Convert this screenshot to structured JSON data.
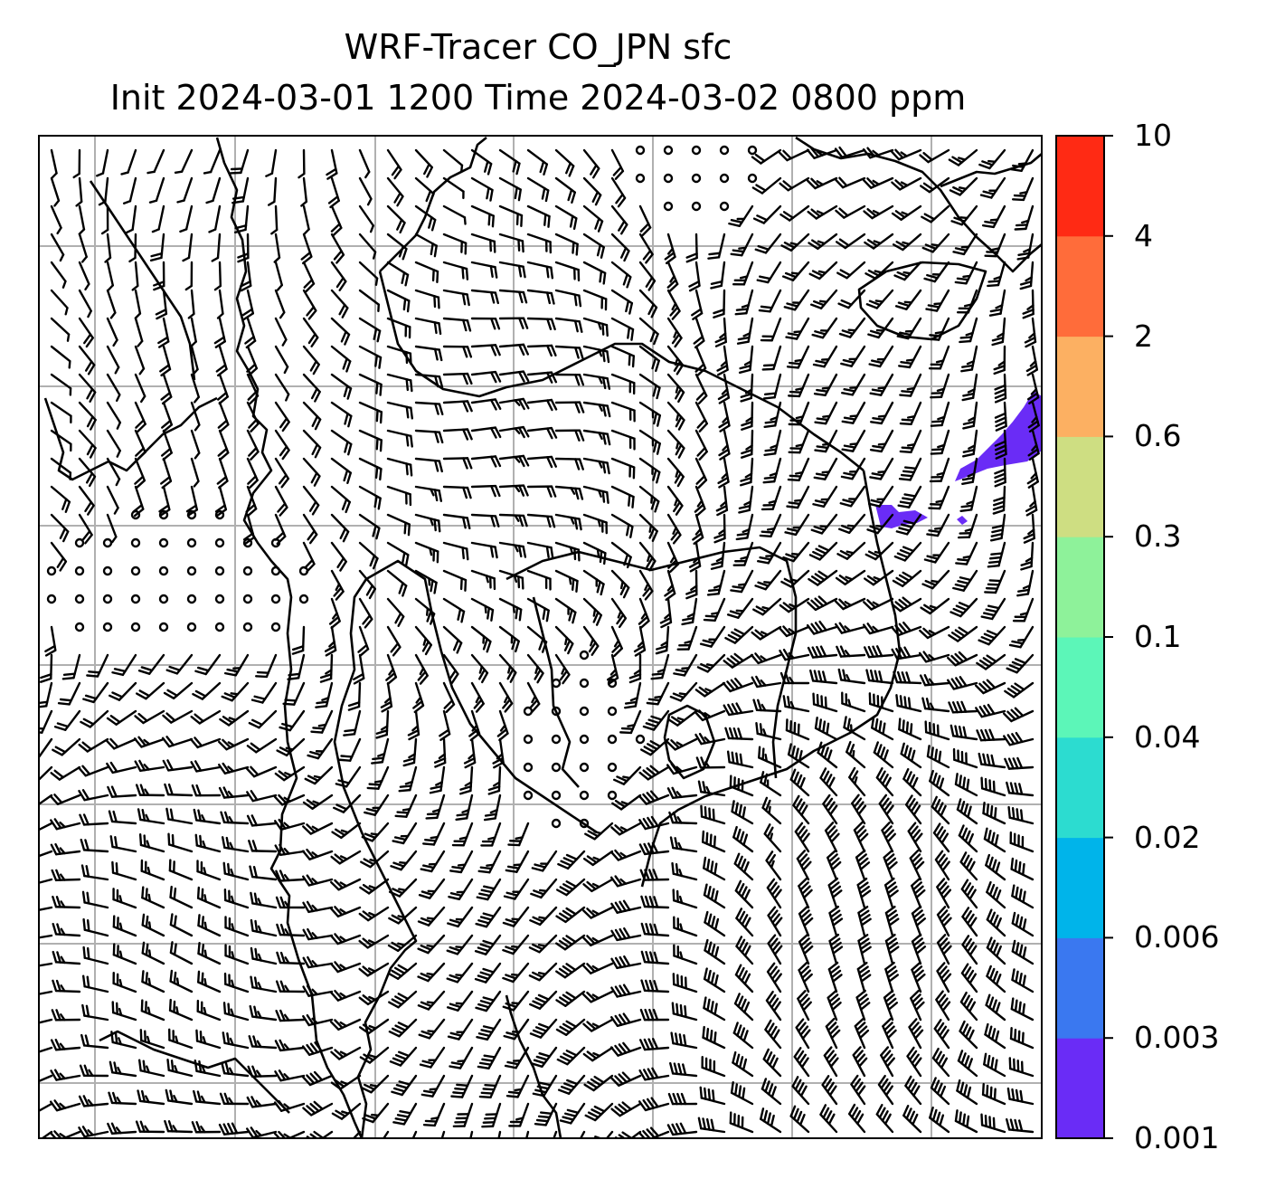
{
  "title": {
    "line1": "WRF-Tracer CO_JPN sfc",
    "line2": "Init 2024-03-01 1200 Time 2024-03-02 0800 ppm"
  },
  "colorbar": {
    "levels": [
      "0.001",
      "0.003",
      "0.006",
      "0.02",
      "0.04",
      "0.1",
      "0.3",
      "0.6",
      "2",
      "4",
      "10"
    ],
    "colors": [
      "#6a2cf6",
      "#3a78f0",
      "#00b4ea",
      "#2cdcd0",
      "#5cf6b8",
      "#8ef29a",
      "#cede82",
      "#fcb062",
      "#ff6c3a",
      "#ff2a14"
    ]
  },
  "field": {
    "plume_color": "#6a2cf6",
    "coast_color": "#000000",
    "grid_color": "#b0b0b0"
  }
}
